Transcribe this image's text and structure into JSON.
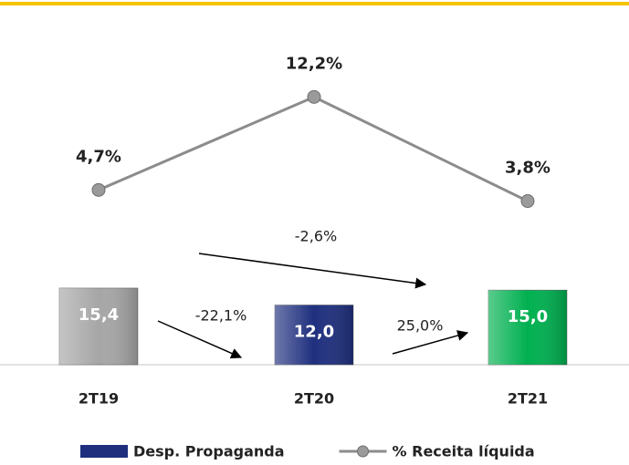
{
  "chart_data": {
    "type": "bar-line",
    "categories": [
      "2T19",
      "2T20",
      "2T21"
    ],
    "series": [
      {
        "name": "Desp. Propaganda",
        "type": "bar",
        "color": "#1f2f7e",
        "colors": [
          "#a6a6a6",
          "#1f2f7e",
          "#00b050"
        ],
        "values": [
          15.4,
          12.0,
          15.0
        ],
        "value_labels": [
          "15,4",
          "12,0",
          "15,0"
        ]
      },
      {
        "name": "% Receita líquida",
        "type": "line",
        "axis": "y2",
        "color": "#8c8c8c",
        "values": [
          4.7,
          12.2,
          3.8
        ],
        "value_labels": [
          "4,7%",
          "12,2%",
          "3,8%"
        ]
      }
    ],
    "ylim": [
      0,
      70
    ],
    "y2lim": [
      -9.4,
      18.7
    ],
    "annotations": [
      "-22,1%",
      "25,0%",
      "-2,6%"
    ]
  }
}
